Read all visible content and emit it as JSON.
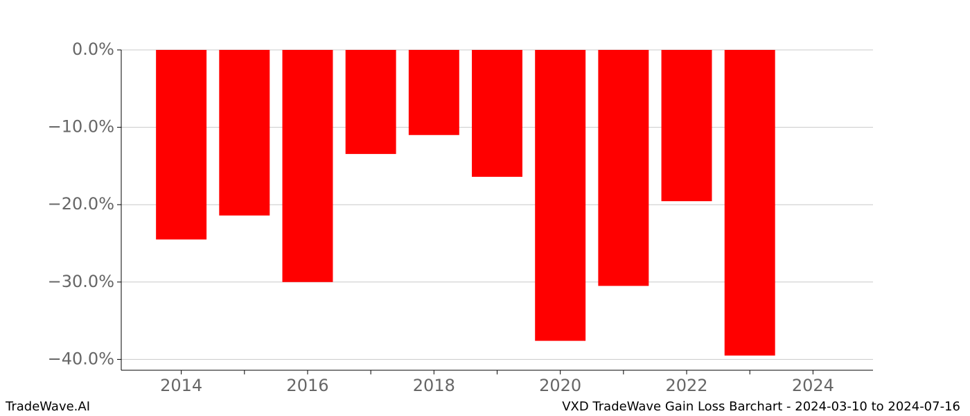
{
  "chart_data": {
    "type": "bar",
    "title": "VXD TradeWave Gain Loss Barchart - 2024-03-10 to 2024-07-16",
    "watermark": "TradeWave.AI",
    "x": [
      2014,
      2015,
      2016,
      2017,
      2018,
      2019,
      2020,
      2021,
      2022,
      2023
    ],
    "values": [
      -24.5,
      -21.4,
      -30.0,
      -13.45,
      -11.0,
      -16.4,
      -37.6,
      -30.5,
      -19.55,
      -39.5
    ],
    "color": "#ff0000",
    "xlim": [
      2013.05,
      2024.95
    ],
    "xticks": [
      2014,
      2016,
      2018,
      2020,
      2022,
      2024
    ],
    "xticks_minor": [
      2015,
      2017,
      2019,
      2021,
      2023
    ],
    "ylim": [
      -41.4,
      0
    ],
    "yticks": [
      {
        "value": 0,
        "label": "0.0%"
      },
      {
        "value": -10,
        "label": "−10.0%"
      },
      {
        "value": -20,
        "label": "−20.0%"
      },
      {
        "value": -30,
        "label": "−30.0%"
      },
      {
        "value": -40,
        "label": "−40.0%"
      }
    ],
    "grid": true
  }
}
